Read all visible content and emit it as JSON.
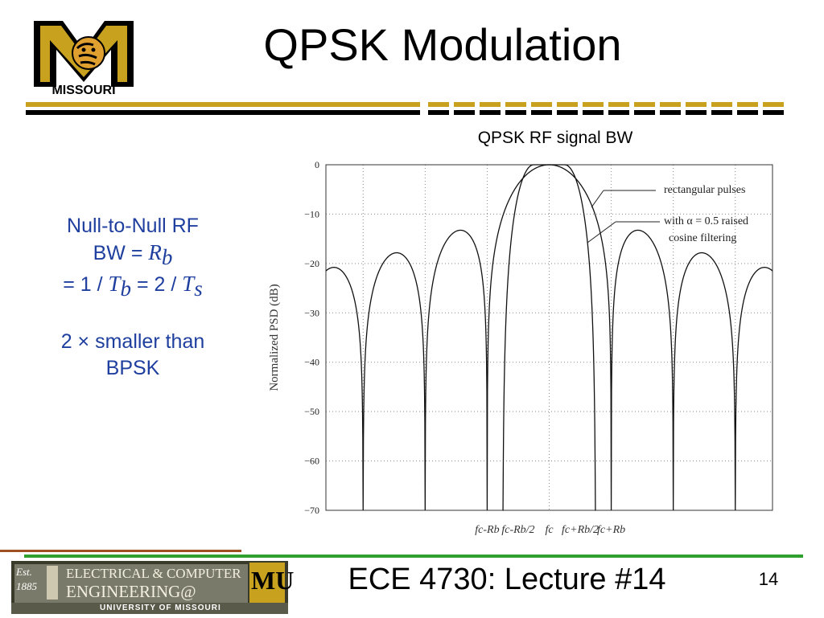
{
  "slide": {
    "title": "QPSK Modulation",
    "page_number": "14",
    "footer": "ECE 4730:  Lecture #14",
    "accent_color": "#c8a21e"
  },
  "logo": {
    "text": "MISSOURI",
    "mark": "M",
    "icon": "tiger-m-logo"
  },
  "dept_logo": {
    "est": "Est.",
    "year": "1885",
    "line1": "ELECTRICAL & COMPUTER",
    "line2": "ENGINEERING@",
    "mu": "MU",
    "line3": "UNIVERSITY OF MISSOURI"
  },
  "left_text": {
    "line1": "Null-to-Null RF",
    "line2_prefix": "BW = ",
    "rb_main": "R",
    "rb_sub": "b",
    "line3_a": "= 1 / ",
    "tb_main": "T",
    "tb_sub": "b",
    "line3_b": " = 2 / ",
    "ts_main": "T",
    "ts_sub": "s",
    "line4": "2 × smaller than",
    "line5": "BPSK"
  },
  "chart_data": {
    "type": "line",
    "caption": "QPSK RF signal BW",
    "ylabel": "Normalized PSD (dB)",
    "ylim": [
      -70,
      0
    ],
    "yticks": [
      "0",
      "−10",
      "−20",
      "−30",
      "−40",
      "−50",
      "−60",
      "−70"
    ],
    "xlim": [
      -3.6,
      3.6
    ],
    "x_unit": "Rb offset from fc",
    "xtick_positions": [
      -1,
      -0.5,
      0,
      0.5,
      1
    ],
    "xtick_labels": [
      "fc-Rb",
      "fc-Rb/2",
      "fc",
      "fc+Rb/2",
      "fc+Rb"
    ],
    "grid": true,
    "series": [
      {
        "name": "rectangular pulses",
        "description": "sinc² spectrum with side lobes at about −13.5, −17.9, −20.8 dB"
      },
      {
        "name": "with α = 0.5 raised cosine filtering",
        "description": "main lobe only, band-limited to ±0.75 Rb"
      }
    ],
    "annotations": [
      "rectangular pulses",
      "with α = 0.5 raised",
      "cosine filtering"
    ]
  }
}
